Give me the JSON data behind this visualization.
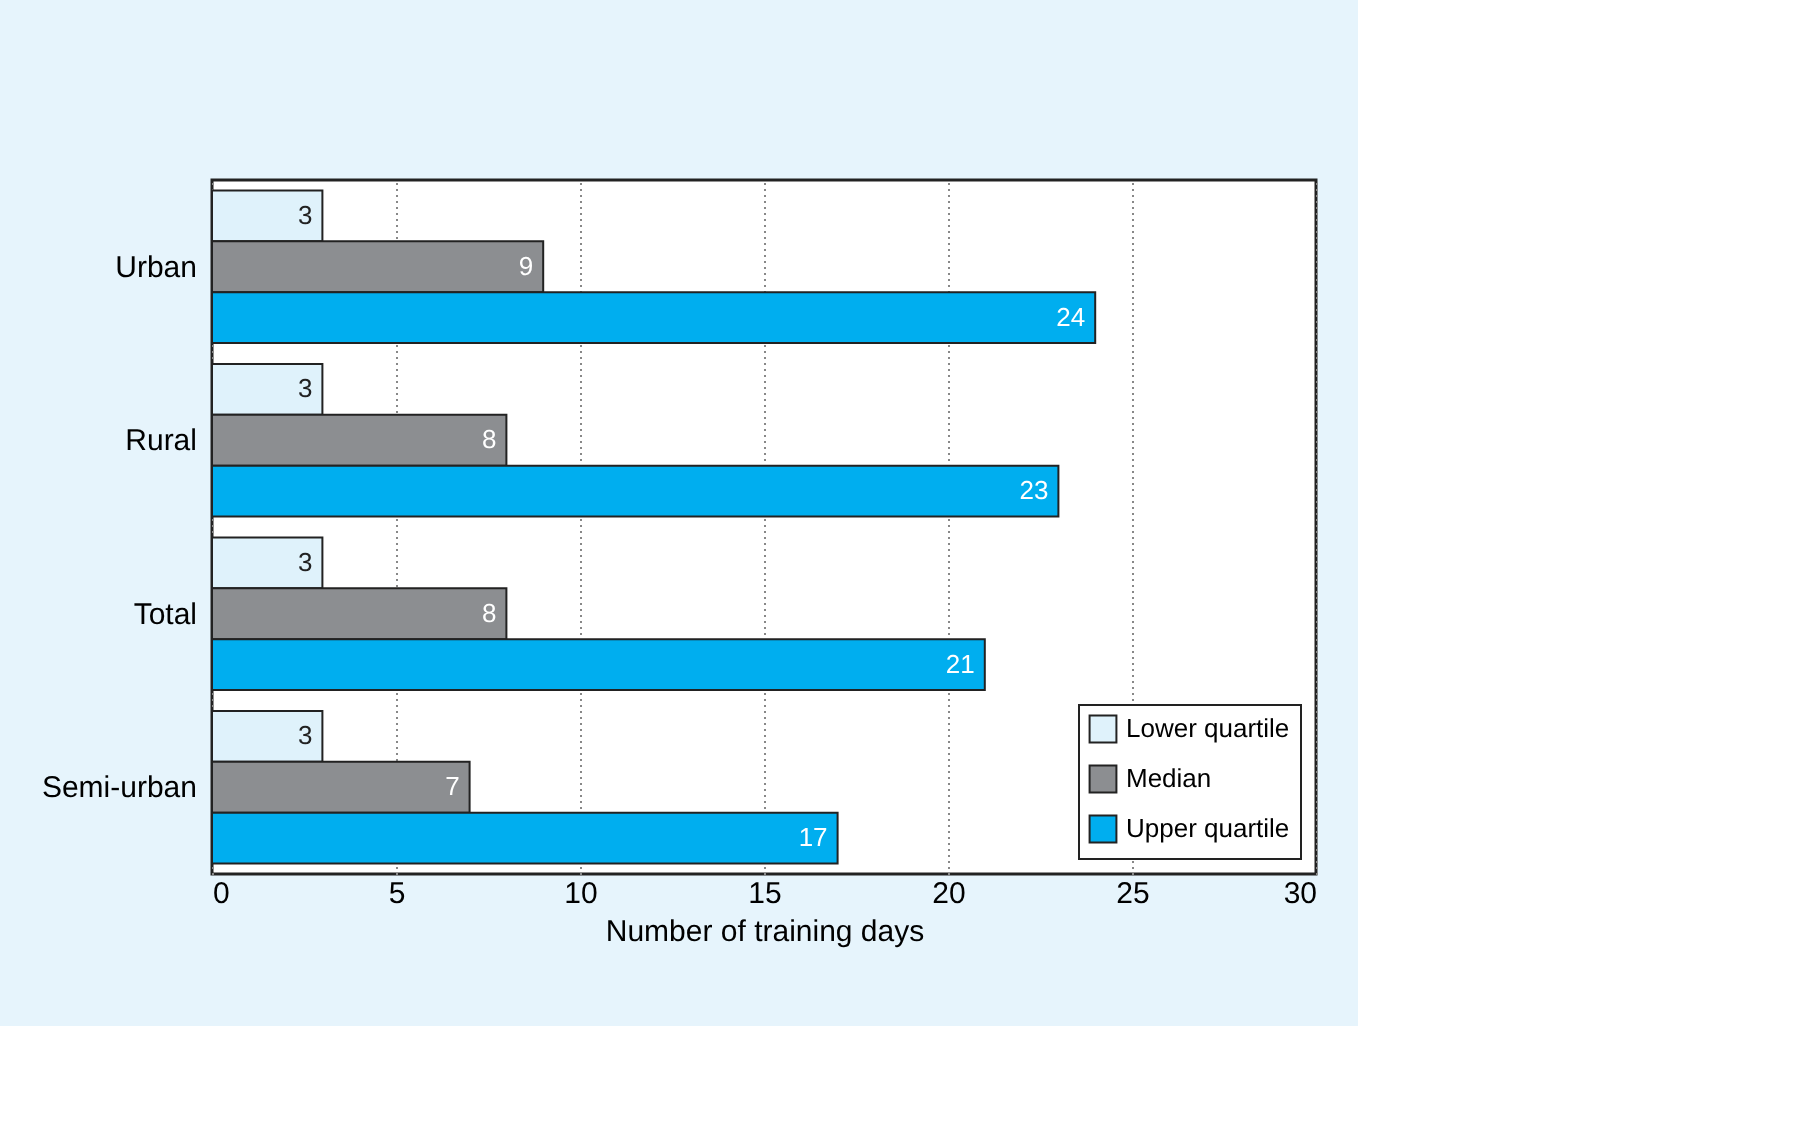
{
  "chart_data": {
    "type": "bar",
    "orientation": "horizontal",
    "xlabel": "Number of training days",
    "categories": [
      "Urban",
      "Rural",
      "Total",
      "Semi-urban"
    ],
    "series": [
      {
        "name": "Lower quartile",
        "color": "#dff2fb",
        "values": [
          3,
          3,
          3,
          3
        ]
      },
      {
        "name": "Median",
        "color": "#8c8e91",
        "values": [
          9,
          8,
          8,
          7
        ]
      },
      {
        "name": "Upper quartile",
        "color": "#00aeef",
        "values": [
          24,
          23,
          21,
          17
        ]
      }
    ],
    "xlim": [
      0,
      30
    ],
    "xticks": [
      0,
      5,
      10,
      15,
      20,
      25,
      30
    ],
    "grid": "x",
    "legend": "bottom right",
    "data_labels": true
  }
}
